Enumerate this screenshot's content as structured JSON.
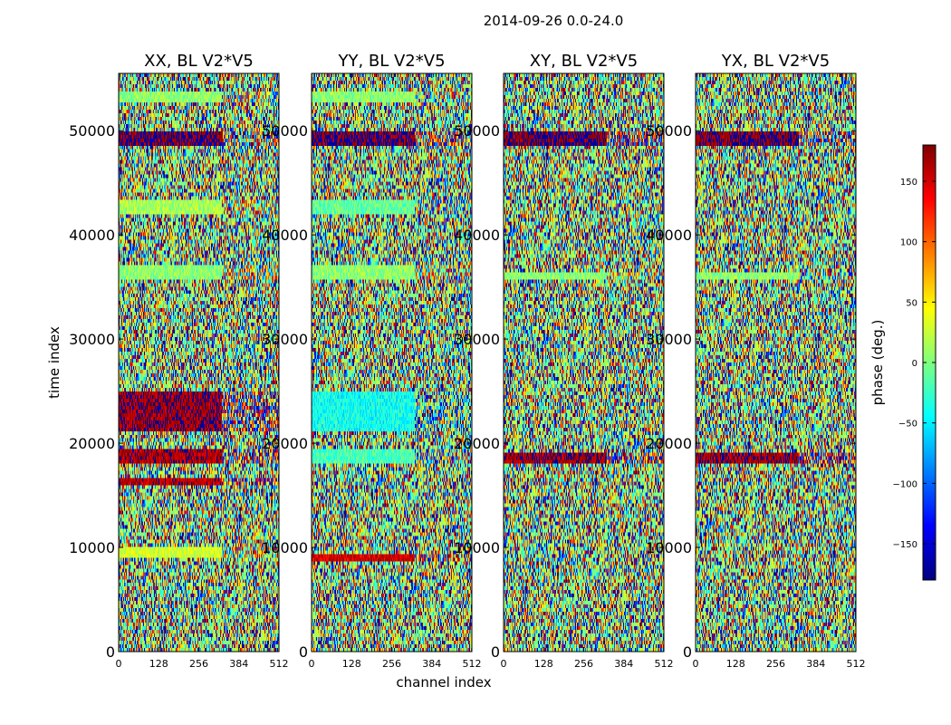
{
  "figure": {
    "suptitle": "2014-09-26 0.0-24.0",
    "xlabel": "channel index",
    "ylabel": "time index",
    "colorbar_label": "phase (deg.)",
    "colorbar_ticks": [
      -150,
      -100,
      -50,
      0,
      50,
      100,
      150
    ],
    "colorbar_tick_labels": [
      "−150",
      "−100",
      "−50",
      "0",
      "50",
      "100",
      "150"
    ],
    "colorbar_range": [
      -180,
      180
    ],
    "colormap": "jet",
    "colormap_stops": [
      "#00007f",
      "#0000ff",
      "#007fff",
      "#00ffff",
      "#7fff7f",
      "#ffff00",
      "#ff7f00",
      "#ff0000",
      "#7f0000"
    ]
  },
  "chart_data": [
    {
      "type": "heatmap",
      "title": "XX, BL V2*V5",
      "x_ticks": [
        0,
        128,
        256,
        384,
        512
      ],
      "y_ticks": [
        0,
        10000,
        20000,
        30000,
        40000,
        50000
      ],
      "xlim": [
        0,
        512
      ],
      "ylim": [
        0,
        55500
      ],
      "value_range_deg": [
        -180,
        180
      ],
      "bands": [
        {
          "y0": 48500,
          "y1": 50000,
          "phase": 180
        },
        {
          "y0": 35800,
          "y1": 37000,
          "phase": 5
        },
        {
          "y0": 52800,
          "y1": 53600,
          "phase": 5
        },
        {
          "y0": 41800,
          "y1": 43500,
          "phase": 15
        },
        {
          "y0": 21000,
          "y1": 25000,
          "phase": 170
        },
        {
          "y0": 18200,
          "y1": 19500,
          "phase": 165
        },
        {
          "y0": 16000,
          "y1": 16800,
          "phase": 160
        },
        {
          "y0": 9000,
          "y1": 10200,
          "phase": 30
        }
      ]
    },
    {
      "type": "heatmap",
      "title": "YY, BL V2*V5",
      "x_ticks": [
        0,
        128,
        256,
        384,
        512
      ],
      "y_ticks": [
        0,
        10000,
        20000,
        30000,
        40000,
        50000
      ],
      "xlim": [
        0,
        512
      ],
      "ylim": [
        0,
        55500
      ],
      "value_range_deg": [
        -180,
        180
      ],
      "bands": [
        {
          "y0": 48500,
          "y1": 50000,
          "phase": 180
        },
        {
          "y0": 35800,
          "y1": 37000,
          "phase": 5
        },
        {
          "y0": 52800,
          "y1": 53600,
          "phase": 5
        },
        {
          "y0": 41800,
          "y1": 43500,
          "phase": -10
        },
        {
          "y0": 21000,
          "y1": 25000,
          "phase": -40
        },
        {
          "y0": 18200,
          "y1": 19500,
          "phase": -20
        },
        {
          "y0": 8500,
          "y1": 9500,
          "phase": 150
        }
      ]
    },
    {
      "type": "heatmap",
      "title": "XY, BL V2*V5",
      "x_ticks": [
        0,
        128,
        256,
        384,
        512
      ],
      "y_ticks": [
        0,
        10000,
        20000,
        30000,
        40000,
        50000
      ],
      "xlim": [
        0,
        512
      ],
      "ylim": [
        0,
        55500
      ],
      "value_range_deg": [
        -180,
        180
      ],
      "bands": [
        {
          "y0": 48500,
          "y1": 50000,
          "phase": 180
        },
        {
          "y0": 35800,
          "y1": 36300,
          "phase": 5
        },
        {
          "y0": 18200,
          "y1": 19000,
          "phase": 170
        }
      ]
    },
    {
      "type": "heatmap",
      "title": "YX, BL V2*V5",
      "x_ticks": [
        0,
        128,
        256,
        384,
        512
      ],
      "y_ticks": [
        0,
        10000,
        20000,
        30000,
        40000,
        50000
      ],
      "xlim": [
        0,
        512
      ],
      "ylim": [
        0,
        55500
      ],
      "value_range_deg": [
        -180,
        180
      ],
      "bands": [
        {
          "y0": 48500,
          "y1": 50000,
          "phase": 180
        },
        {
          "y0": 35800,
          "y1": 36300,
          "phase": 5
        },
        {
          "y0": 18200,
          "y1": 19000,
          "phase": 170
        }
      ]
    }
  ]
}
